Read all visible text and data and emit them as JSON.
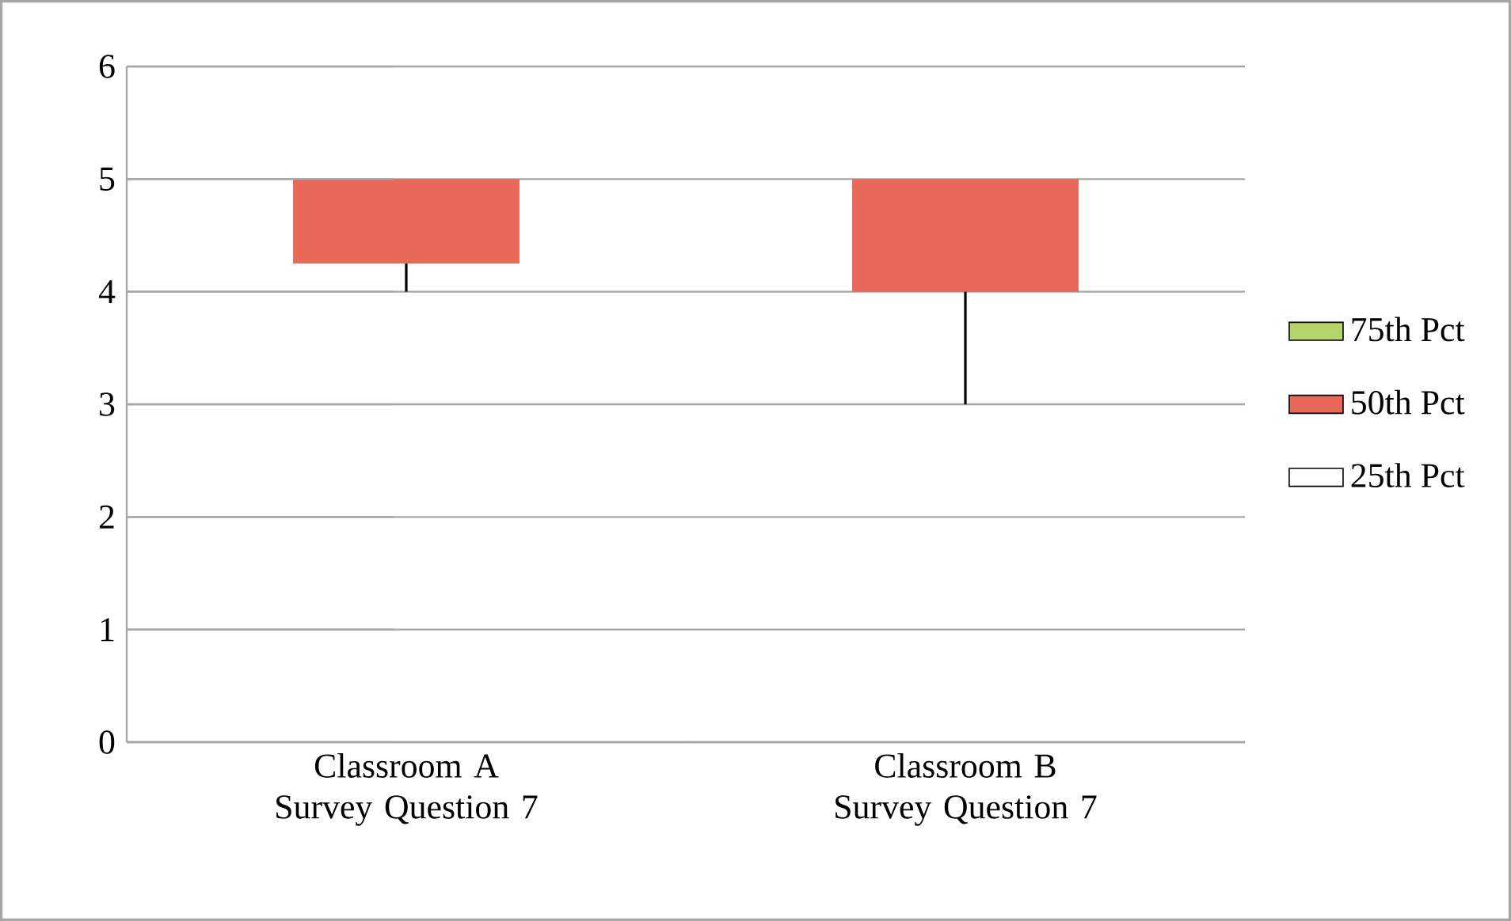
{
  "chart_data": {
    "type": "bar",
    "categories": [
      "Classroom A Survey Question 7",
      "Classroom B Survey Question 7"
    ],
    "series": [
      {
        "name": "25th Pct",
        "values": [
          null,
          null
        ]
      },
      {
        "name": "50th Pct",
        "color": "#e8685a",
        "base": [
          4.25,
          4
        ],
        "values": [
          0.75,
          1
        ],
        "errors": [
          [
            4,
            4.25
          ],
          [
            3,
            4
          ]
        ]
      },
      {
        "name": "75th Pct",
        "color": "#b5d56a",
        "values": [
          null,
          null
        ]
      }
    ],
    "ylim": [
      0,
      6
    ],
    "yticks": [
      0,
      1,
      2,
      3,
      4,
      5,
      6
    ],
    "grid": "y",
    "legend": "right"
  }
}
